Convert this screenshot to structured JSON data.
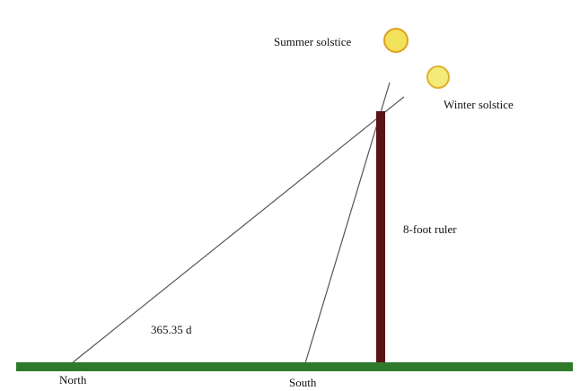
{
  "labels": {
    "summer": "Summer solstice",
    "winter": "Winter solstice",
    "ruler": "8-foot ruler",
    "days": "365.35 d",
    "north": "North",
    "south": "South"
  }
}
